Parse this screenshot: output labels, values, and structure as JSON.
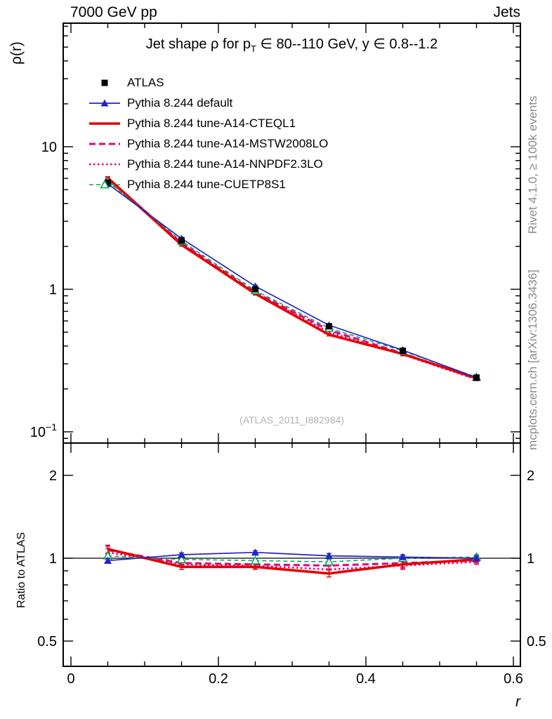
{
  "header": {
    "left": "7000 GeV pp",
    "right": "Jets"
  },
  "side_notes": {
    "top": "Rivet 4.1.0, ≥ 100k events",
    "bottom": "mcplots.cern.ch [arXiv:1306.3436]"
  },
  "title": {
    "pre": "Jet shape ρ for p",
    "sub": "T",
    "post": " ∈ 80--110 GeV, y ∈ 0.8--1.2"
  },
  "watermark": "(ATLAS_2011_I882984)",
  "axes": {
    "main_ylabel": "ρ(r)",
    "ratio_ylabel": "Ratio to ATLAS",
    "xlabel": "r",
    "x_ticks": [
      {
        "v": 0,
        "label": "0"
      },
      {
        "v": 0.2,
        "label": "0.2"
      },
      {
        "v": 0.4,
        "label": "0.4"
      },
      {
        "v": 0.6,
        "label": "0.6"
      }
    ],
    "main_y_ticks": [
      {
        "v": 10,
        "base": "10",
        "exp": ""
      },
      {
        "v": 1,
        "base": "1",
        "exp": ""
      },
      {
        "v": 0.1,
        "base": "10",
        "exp": "−1"
      }
    ],
    "ratio_y_ticks": [
      {
        "v": 2,
        "label": "2"
      },
      {
        "v": 1,
        "label": "1"
      },
      {
        "v": 0.5,
        "label": "0.5"
      }
    ]
  },
  "chart_data": {
    "type": "line",
    "title": "Jet shape ρ for p_T ∈ 80--110 GeV, y ∈ 0.8--1.2",
    "xlabel": "r",
    "ylabel": "ρ(r)",
    "ratio_ylabel": "Ratio to ATLAS",
    "legend_position": "top-left",
    "x_values": [
      0.05,
      0.15,
      0.25,
      0.35,
      0.45,
      0.55
    ],
    "xlim": [
      -0.0105,
      0.6095
    ],
    "main_ylim_log": [
      0.083,
      73
    ],
    "ratio_ylim_log": [
      0.405,
      2.62
    ],
    "ratio_reference": 1,
    "series": [
      {
        "name": "ATLAS",
        "slug": "atlas",
        "color": "#000000",
        "line": "none",
        "marker": "square",
        "z": 7,
        "values": [
          5.6,
          2.2,
          1.0,
          0.55,
          0.37,
          0.24
        ],
        "err_frac": 0.025
      },
      {
        "name": "Pythia 8.244 default",
        "slug": "pythia-default",
        "color": "#2222cc",
        "line": "solid",
        "width": 1.7,
        "marker": "triangle",
        "z": 6,
        "values": [
          5.49,
          2.27,
          1.05,
          0.56,
          0.374,
          0.24
        ],
        "ratio": [
          0.98,
          1.03,
          1.05,
          1.02,
          1.01,
          1.0
        ],
        "err_frac": 0.02,
        "ratio_err": [
          0.02,
          0.015,
          0.015,
          0.02,
          0.02,
          0.02
        ]
      },
      {
        "name": "Pythia 8.244 tune-A14-CTEQL1",
        "slug": "pythia-a14-cteql1",
        "color": "#e60000",
        "line": "solid",
        "width": 3.6,
        "marker": "none",
        "z": 4,
        "values": [
          6.05,
          2.05,
          0.93,
          0.48,
          0.352,
          0.238
        ],
        "ratio": [
          1.08,
          0.93,
          0.93,
          0.88,
          0.95,
          0.99
        ],
        "err_frac": 0.02,
        "ratio_err": [
          0.035,
          0.02,
          0.02,
          0.025,
          0.03,
          0.02
        ]
      },
      {
        "name": "Pythia 8.244 tune-A14-MSTW2008LO",
        "slug": "pythia-a14-mstw2008lo",
        "color": "#e5007d",
        "line": "dashed",
        "width": 3,
        "marker": "none",
        "z": 3,
        "values": [
          5.99,
          2.11,
          0.95,
          0.517,
          0.355,
          0.235
        ],
        "ratio": [
          1.07,
          0.96,
          0.95,
          0.94,
          0.96,
          0.98
        ],
        "err_frac": 0.02,
        "ratio_err": [
          0.035,
          0.02,
          0.02,
          0.025,
          0.03,
          0.02
        ]
      },
      {
        "name": "Pythia 8.244 tune-A14-NNPDF2.3LO",
        "slug": "pythia-a14-nnpdf23lo",
        "color": "#e5007d",
        "line": "dotted",
        "width": 2.6,
        "marker": "none",
        "z": 2,
        "values": [
          5.88,
          2.09,
          0.94,
          0.5,
          0.348,
          0.233
        ],
        "ratio": [
          1.05,
          0.95,
          0.94,
          0.91,
          0.94,
          0.97
        ],
        "err_frac": 0.02,
        "ratio_err": [
          0.035,
          0.02,
          0.02,
          0.025,
          0.03,
          0.02
        ]
      },
      {
        "name": "Pythia 8.244 tune-CUETP8S1",
        "slug": "pythia-cuetp8s1",
        "color": "#00a650",
        "line": "dashed",
        "width": 1.5,
        "marker": "triangle-open",
        "z": 5,
        "values": [
          5.71,
          2.18,
          0.98,
          0.534,
          0.37,
          0.242
        ],
        "ratio": [
          1.02,
          0.99,
          0.98,
          0.97,
          1.0,
          1.01
        ],
        "err_frac": 0.02,
        "ratio_err": [
          0.02,
          0.015,
          0.015,
          0.02,
          0.02,
          0.02
        ]
      }
    ]
  }
}
